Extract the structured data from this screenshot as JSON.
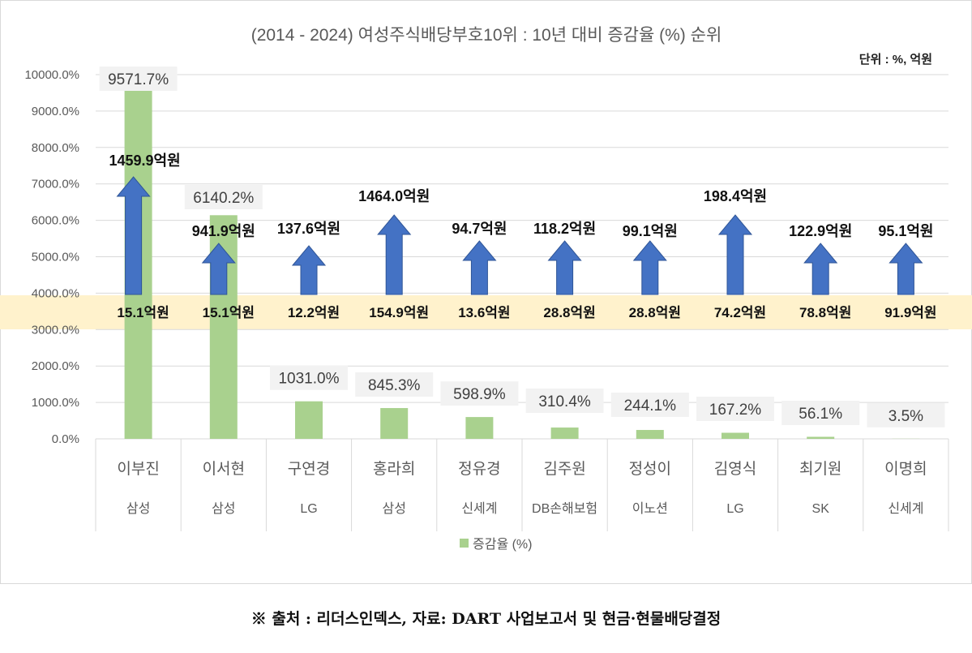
{
  "chart_data": {
    "type": "bar",
    "title": "(2014 - 2024) 여성주식배당부호10위 : 10년 대비 증감율 (%) 순위",
    "unit_note": "단위 : %, 억원",
    "categories": [
      "이부진",
      "이서현",
      "구연경",
      "홍라희",
      "정유경",
      "김주원",
      "정성이",
      "김영식",
      "최기원",
      "이명희"
    ],
    "companies": [
      "삼성",
      "삼성",
      "LG",
      "삼성",
      "신세계",
      "DB손해보험",
      "이노션",
      "LG",
      "SK",
      "신세계"
    ],
    "series": [
      {
        "name": "증감율 (%)",
        "color": "#a9d18e",
        "values": [
          9571.7,
          6140.2,
          1031.0,
          845.3,
          598.9,
          310.4,
          244.1,
          167.2,
          56.1,
          3.5
        ]
      }
    ],
    "value_labels": [
      "9571.7%",
      "6140.2%",
      "1031.0%",
      "845.3%",
      "598.9%",
      "310.4%",
      "244.1%",
      "167.2%",
      "56.1%",
      "3.5%"
    ],
    "dividend_2014_labels": [
      "15.1억원",
      "15.1억원",
      "12.2억원",
      "154.9억원",
      "13.6억원",
      "28.8억원",
      "28.8억원",
      "74.2억원",
      "78.8억원",
      "91.9억원"
    ],
    "dividend_2024_labels": [
      "1459.9억원",
      "941.9억원",
      "137.6억원",
      "1464.0억원",
      "94.7억원",
      "118.2억원",
      "99.1억원",
      "198.4억원",
      "122.9억원",
      "95.1억원"
    ],
    "arrow_color": "#4472c4",
    "band_color": "#fff2cc",
    "ylim": [
      0,
      10000
    ],
    "yticks": [
      "0.0%",
      "1000.0%",
      "2000.0%",
      "3000.0%",
      "4000.0%",
      "5000.0%",
      "6000.0%",
      "7000.0%",
      "8000.0%",
      "9000.0%",
      "10000.0%"
    ],
    "grid": true,
    "legend": "bottom",
    "legend_label": "증감율 (%)"
  },
  "footer": "※ 출처 : 리더스인덱스, 자료: DART 사업보고서 및 현금·현물배당결정"
}
